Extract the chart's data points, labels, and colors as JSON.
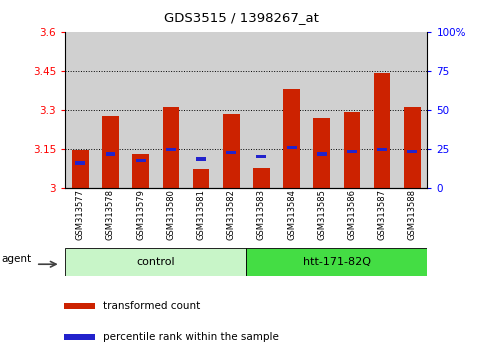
{
  "title": "GDS3515 / 1398267_at",
  "samples": [
    "GSM313577",
    "GSM313578",
    "GSM313579",
    "GSM313580",
    "GSM313581",
    "GSM313582",
    "GSM313583",
    "GSM313584",
    "GSM313585",
    "GSM313586",
    "GSM313587",
    "GSM313588"
  ],
  "red_values": [
    3.145,
    3.275,
    3.13,
    3.31,
    3.07,
    3.285,
    3.075,
    3.38,
    3.27,
    3.29,
    3.44,
    3.31
  ],
  "blue_values": [
    3.095,
    3.13,
    3.105,
    3.148,
    3.11,
    3.135,
    3.12,
    3.155,
    3.13,
    3.14,
    3.148,
    3.14
  ],
  "ymin": 3.0,
  "ymax": 3.6,
  "yticks": [
    3.0,
    3.15,
    3.3,
    3.45,
    3.6
  ],
  "ytick_labels": [
    "3",
    "3.15",
    "3.3",
    "3.45",
    "3.6"
  ],
  "y2ticks": [
    0,
    25,
    50,
    75,
    100
  ],
  "y2tick_labels": [
    "0",
    "25",
    "50",
    "75",
    "100%"
  ],
  "groups": [
    {
      "label": "control",
      "start": 0,
      "end": 5,
      "color": "#c8f5c8"
    },
    {
      "label": "htt-171-82Q",
      "start": 6,
      "end": 11,
      "color": "#44dd44"
    }
  ],
  "bar_color_red": "#cc2200",
  "bar_color_blue": "#2222cc",
  "bar_width": 0.55,
  "col_bg": "#d0d0d0",
  "legend_items": [
    {
      "label": "transformed count",
      "color": "#cc2200"
    },
    {
      "label": "percentile rank within the sample",
      "color": "#2222cc"
    }
  ]
}
